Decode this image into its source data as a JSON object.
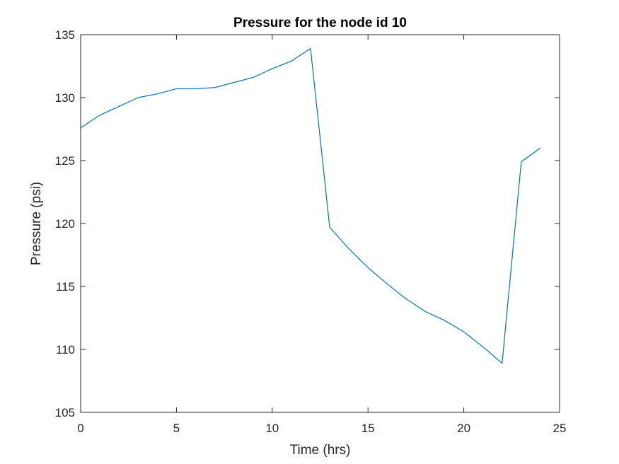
{
  "chart_data": {
    "type": "line",
    "title": "Pressure for the node id 10",
    "xlabel": "Time (hrs)",
    "ylabel": "Pressure (psi)",
    "xlim": [
      0,
      25
    ],
    "ylim": [
      105,
      135
    ],
    "xticks": [
      0,
      5,
      10,
      15,
      20,
      25
    ],
    "yticks": [
      105,
      110,
      115,
      120,
      125,
      130,
      135
    ],
    "grid": false,
    "series": [
      {
        "color": "#0072BD",
        "x": [
          0,
          1,
          2,
          3,
          4,
          5,
          6,
          7,
          8,
          9,
          10,
          11,
          12,
          13,
          14,
          15,
          16,
          17,
          18,
          19,
          20,
          21,
          22,
          23,
          24
        ],
        "y": [
          127.6,
          128.6,
          129.3,
          130.0,
          130.3,
          130.7,
          130.7,
          130.8,
          131.2,
          131.6,
          132.3,
          132.9,
          133.9,
          119.7,
          118.0,
          116.5,
          115.2,
          114.0,
          113.0,
          112.3,
          111.4,
          110.2,
          108.9,
          124.9,
          126.0
        ]
      }
    ]
  }
}
